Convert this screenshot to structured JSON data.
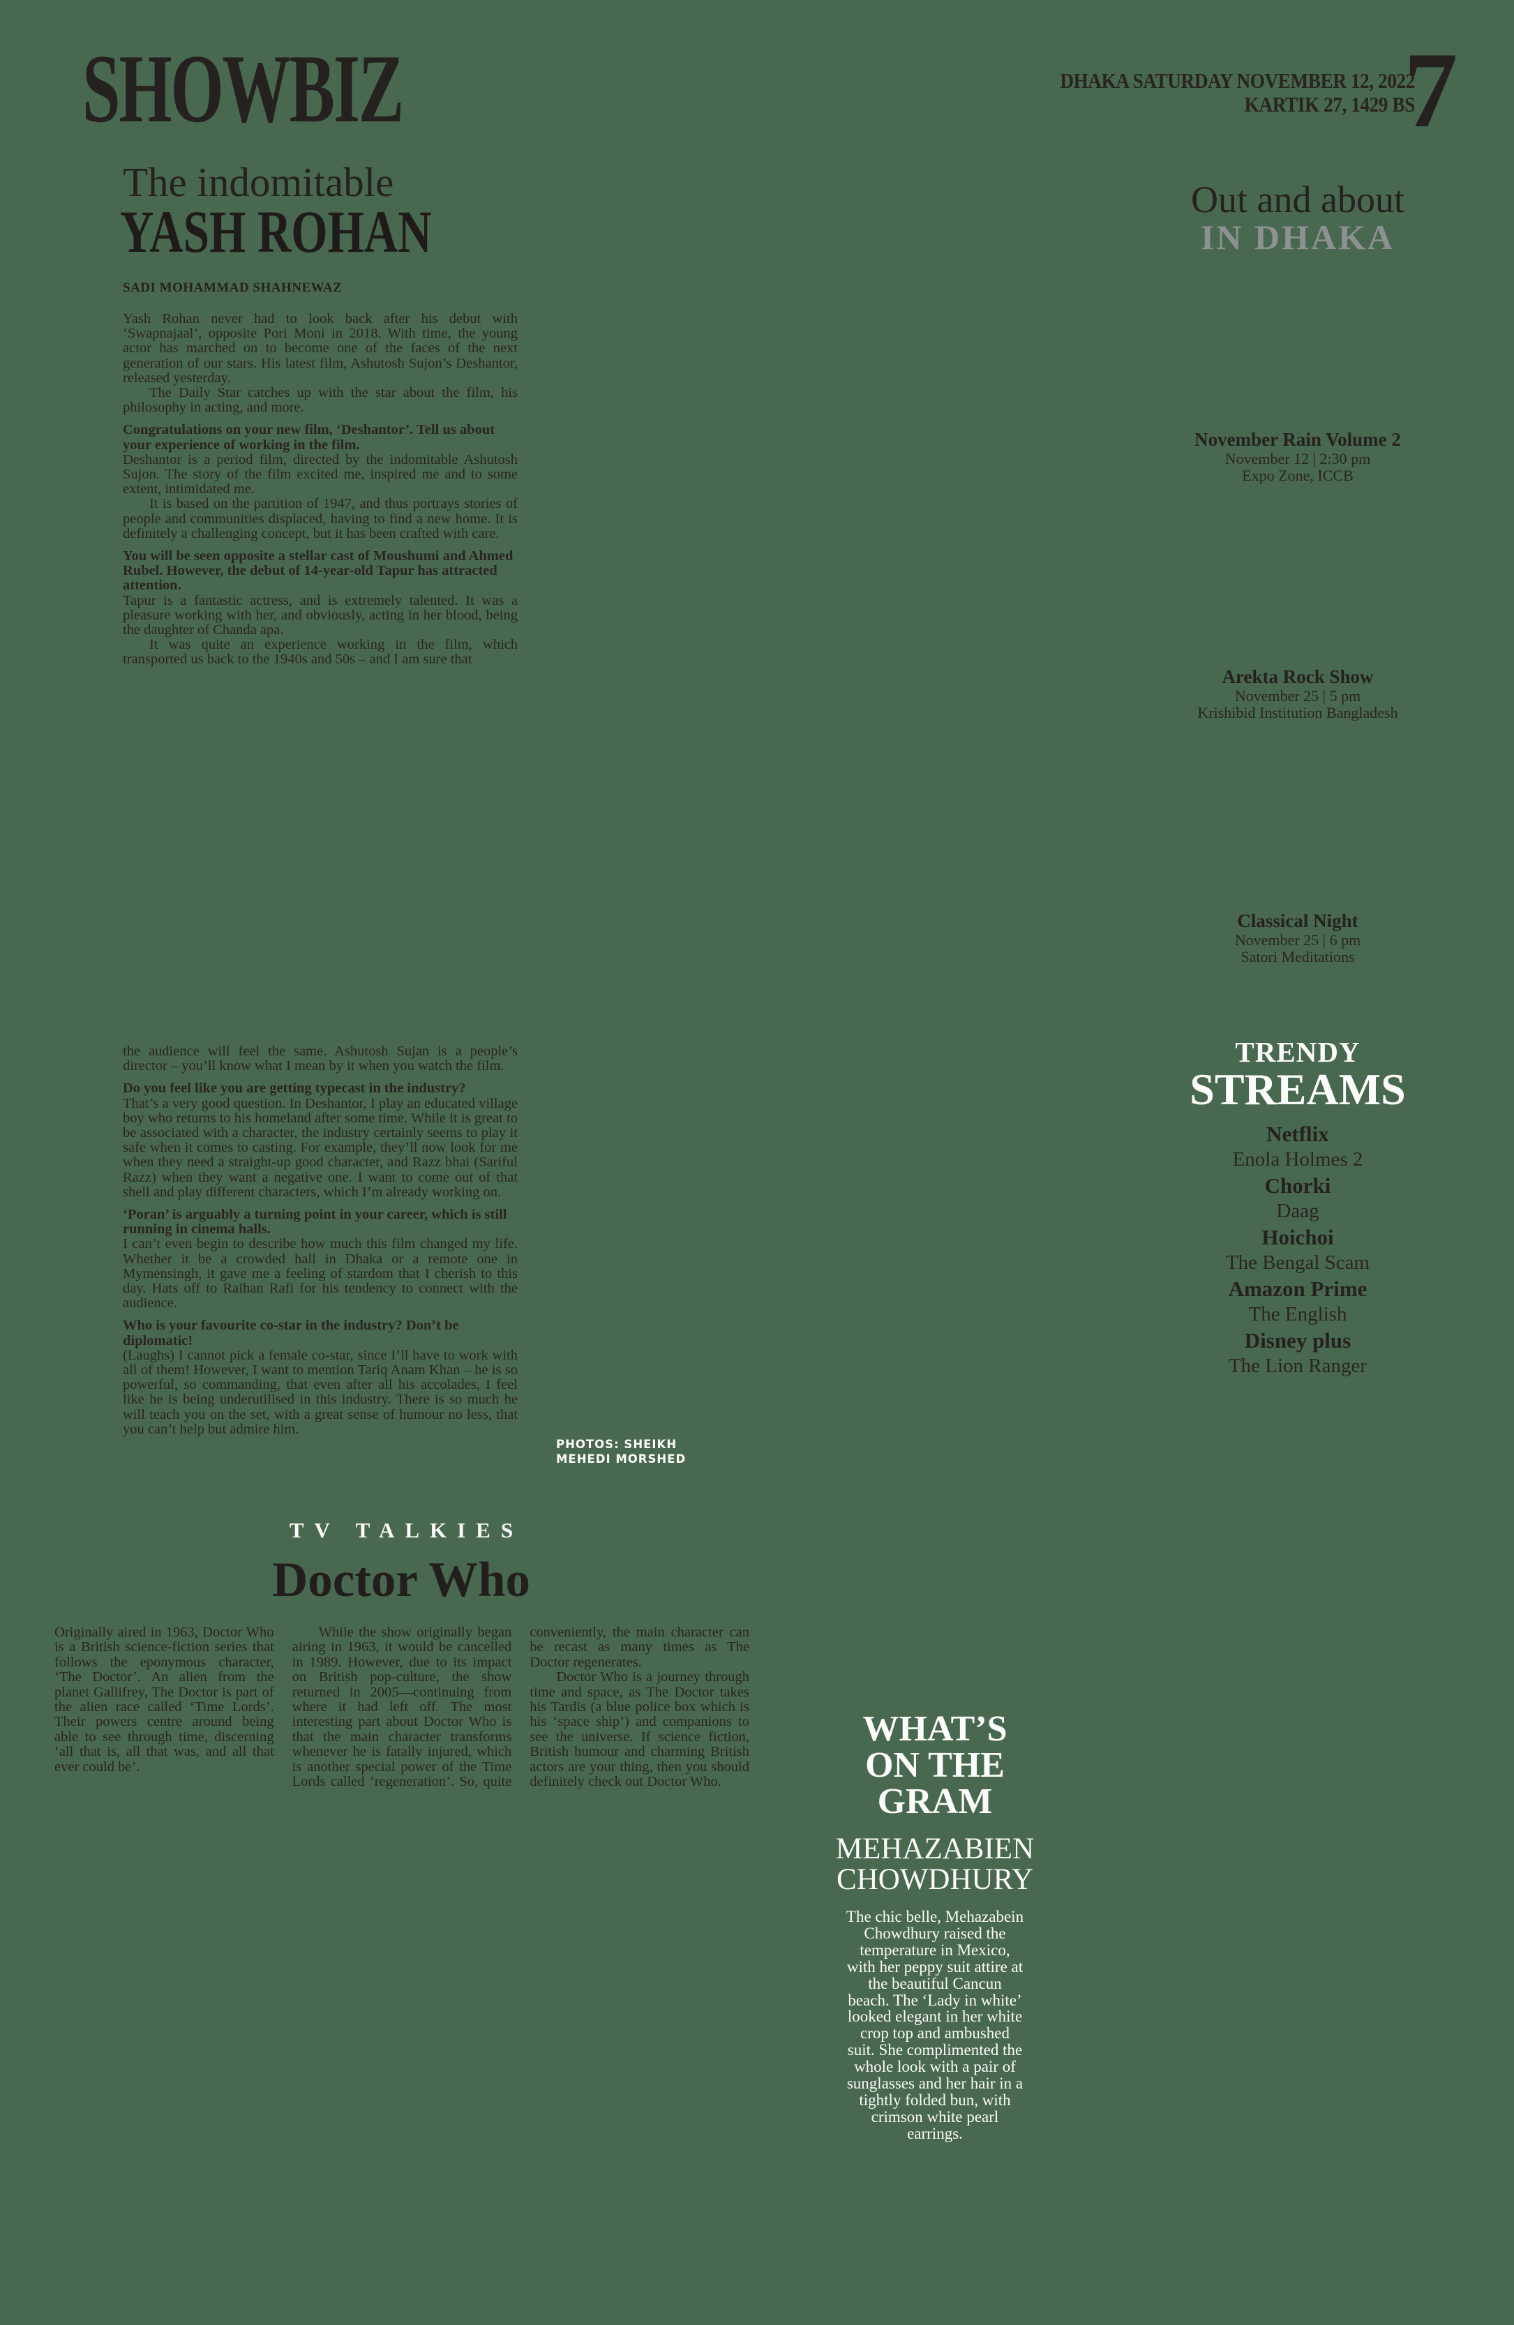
{
  "masthead": {
    "title": "SHOWBIZ"
  },
  "dateline": {
    "line1": "DHAKA SATURDAY NOVEMBER 12, 2022",
    "line2": "KARTIK 27, 1429 BS",
    "page_number": "7"
  },
  "lead_article": {
    "kicker": "The indomitable",
    "headline": "YASH ROHAN",
    "byline": "SADI MOHAMMAD SHAHNEWAZ",
    "photo_credit_line1": "PHOTOS: SHEIKH",
    "photo_credit_line2": "MEHEDI MORSHED",
    "part1": [
      {
        "style": "",
        "text": "Yash Rohan never had to look back after his debut with ‘Swapnajaal’, opposite Pori Moni in 2018. With time, the young actor has marched on to become one of the faces of the next generation of our stars. His latest film, Ashutosh Sujon’s Deshantor, released yesterday."
      },
      {
        "style": "indent",
        "text": "The Daily Star catches up with the star about the film, his philosophy in acting, and more."
      },
      {
        "style": "question",
        "text": "Congratulations on your new film, ‘Deshantor’. Tell us about your experience of working in the film."
      },
      {
        "style": "",
        "text": "Deshantor is a period film, directed by the indomitable Ashutosh Sujon. The story of the film excited me, inspired me and to some extent, intimidated me."
      },
      {
        "style": "indent",
        "text": "It is based on the partition of 1947, and thus portrays stories of people and communities displaced, having to find a new home. It is definitely a challenging concept, but it has been crafted with care."
      },
      {
        "style": "question",
        "text": "You will be seen opposite a stellar cast of Moushumi and Ahmed Rubel. However, the debut of 14-year-old Tapur has attracted attention."
      },
      {
        "style": "",
        "text": "Tapur is a fantastic actress, and is extremely talented. It was a pleasure working with her, and obviously, acting in her blood, being the daughter of Chanda apa."
      },
      {
        "style": "indent",
        "text": "It was quite an experience working in the film, which transported us back to the 1940s and 50s – and I am sure that"
      }
    ],
    "part2": [
      {
        "style": "",
        "text": "the audience will feel the same. Ashutosh Sujan is a people’s director – you’ll know what I mean by it when you watch the film."
      },
      {
        "style": "question",
        "text": "Do you feel like you are getting typecast in the industry?"
      },
      {
        "style": "",
        "text": "That’s a very good question. In Deshantor, I play an educated village boy who returns to his homeland after some time. While it is great to be associated with a character, the industry certainly seems to play it safe when it comes to casting. For example, they’ll now look for me when they need a straight-up good character, and Razz bhai (Sariful Razz) when they want a negative one. I want to come out of that shell and play different characters, which I’m already working on."
      },
      {
        "style": "question",
        "text": "‘Poran’ is arguably a turning point in your career, which is still running in cinema halls."
      },
      {
        "style": "",
        "text": "I can’t even begin to describe how much this film changed my life. Whether it be a crowded hall in Dhaka or a remote one in Mymensingh, it gave me a feeling of stardom that I cherish to this day. Hats off to Raihan Rafi for his tendency to connect with the audience."
      },
      {
        "style": "question",
        "text": "Who is your favourite co-star in the industry? Don’t be diplomatic!"
      },
      {
        "style": "",
        "text": "(Laughs) I cannot pick a female co-star, since I’ll have to work with all of them! However, I want to mention Tariq Anam Khan – he is so powerful, so commanding, that even after all his accolades, I feel like he is being underutilised in this industry. There is so much he will teach you on the set, with a great sense of humour no less, that you can’t help but admire him."
      }
    ]
  },
  "out_and_about": {
    "title_line1": "Out and about",
    "title_line2": "IN DHAKA",
    "events": [
      {
        "title": "November Rain Volume 2",
        "datetime": "November 12 | 2:30 pm",
        "venue": "Expo Zone, ICCB"
      },
      {
        "title": "Arekta Rock Show",
        "datetime": "November 25 | 5 pm",
        "venue": "Krishibid Institution Bangladesh"
      },
      {
        "title": "Classical Night",
        "datetime": "November 25 | 6 pm",
        "venue": "Satori Meditations"
      }
    ]
  },
  "trendy_streams": {
    "title_line1": "TRENDY",
    "title_line2": "STREAMS",
    "items": [
      {
        "platform": "Netflix",
        "title": "Enola Holmes 2"
      },
      {
        "platform": "Chorki",
        "title": "Daag"
      },
      {
        "platform": "Hoichoi",
        "title": "The Bengal Scam"
      },
      {
        "platform": "Amazon Prime",
        "title": "The English"
      },
      {
        "platform": "Disney plus",
        "title": "The Lion Ranger"
      }
    ]
  },
  "tv_talkies": {
    "kicker": "TV TALKIES",
    "headline": "Doctor Who",
    "paragraphs": [
      {
        "style": "",
        "text": "Originally aired in 1963, Doctor Who is a British science-fiction series that follows the eponymous character, ‘The Doctor’. An alien from the planet Gallifrey, The Doctor is part of the alien race called ‘Time Lords’. Their powers centre around being able to see through time, discerning ‘all that is, all that was, and all that ever could be’."
      },
      {
        "style": "indent",
        "text": "While the show originally began airing in 1963, it would be cancelled in 1989. However, due to its impact on British pop-culture, the show returned in 2005—continuing from where it had left off. The most interesting part about Doctor Who is that the main character transforms whenever he is fatally injured, which is another special power of the Time Lords called ‘regeneration’. So, quite conveniently, the main character can be recast as many times as The Doctor regenerates."
      },
      {
        "style": "indent",
        "text": "Doctor Who is a journey through time and space, as The Doctor takes his Tardis (a blue police box which is his ‘space ship’) and companions to see the universe. If science fiction, British humour and charming British actors are your thing, then you should definitely check out Doctor Who."
      }
    ]
  },
  "gram": {
    "title_lines": [
      "WHAT’S",
      "ON THE",
      "GRAM"
    ],
    "subtitle_line1": "MEHAZABIEN",
    "subtitle_line2": "CHOWDHURY",
    "body": "The chic belle, Mehazabein Chowdhury raised the temperature in Mexico, with her peppy suit attire at the beautiful Cancun beach. The ‘Lady in white’ looked elegant in her white crop top and ambushed suit. She complimented the whole look with a pair of sunglasses and her hair in a tightly folded bun, with crimson white pearl earrings."
  }
}
